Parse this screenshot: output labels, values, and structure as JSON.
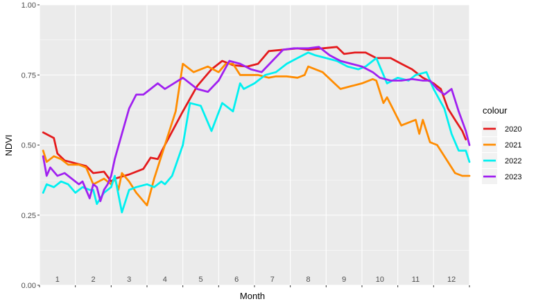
{
  "chart_data": {
    "type": "line",
    "xlabel": "Month",
    "ylabel": "NDVI",
    "ylim": [
      0,
      1
    ],
    "xlim": [
      0.5,
      12.5
    ],
    "y_ticks": [
      "0.00",
      "0.25",
      "0.50",
      "0.75",
      "1.00"
    ],
    "month_labels": [
      "1",
      "2",
      "3",
      "4",
      "5",
      "6",
      "7",
      "8",
      "9",
      "10",
      "11",
      "12"
    ],
    "grid": true,
    "legend": {
      "title": "colour",
      "placement": "right"
    },
    "series": [
      {
        "name": "2020",
        "color": "#e41a1c",
        "x": [
          0.6,
          0.9,
          1.0,
          1.2,
          1.5,
          1.8,
          2.0,
          2.3,
          2.5,
          2.6,
          3.0,
          3.4,
          3.6,
          3.8,
          4.0,
          4.5,
          4.9,
          5.3,
          5.6,
          5.9,
          6.3,
          6.6,
          6.9,
          7.3,
          7.7,
          8.0,
          8.4,
          8.8,
          9.0,
          9.3,
          9.6,
          9.9,
          10.0,
          10.3,
          10.6,
          10.9,
          11.2,
          11.5,
          11.7,
          11.9,
          12.1,
          12.3,
          12.4
        ],
        "y": [
          0.545,
          0.525,
          0.47,
          0.445,
          0.435,
          0.425,
          0.4,
          0.405,
          0.37,
          0.38,
          0.395,
          0.415,
          0.455,
          0.45,
          0.5,
          0.62,
          0.71,
          0.77,
          0.8,
          0.785,
          0.78,
          0.79,
          0.835,
          0.84,
          0.845,
          0.84,
          0.845,
          0.85,
          0.825,
          0.83,
          0.83,
          0.81,
          0.81,
          0.81,
          0.79,
          0.77,
          0.74,
          0.72,
          0.7,
          0.63,
          0.59,
          0.55,
          0.52
        ]
      },
      {
        "name": "2021",
        "color": "#ff8c00",
        "x": [
          0.6,
          0.7,
          0.9,
          1.1,
          1.3,
          1.6,
          1.8,
          2.0,
          2.3,
          2.5,
          2.6,
          2.7,
          2.8,
          3.0,
          3.2,
          3.5,
          3.7,
          4.0,
          4.3,
          4.5,
          4.8,
          5.2,
          5.5,
          5.7,
          5.9,
          6.1,
          6.3,
          6.6,
          6.9,
          7.1,
          7.4,
          7.7,
          7.9,
          8.0,
          8.4,
          8.9,
          9.2,
          9.5,
          9.8,
          9.9,
          10.1,
          10.2,
          10.4,
          10.6,
          10.8,
          11.0,
          11.1,
          11.2,
          11.4,
          11.6,
          11.9,
          12.1,
          12.3,
          12.5
        ],
        "y": [
          0.48,
          0.44,
          0.46,
          0.45,
          0.43,
          0.43,
          0.42,
          0.36,
          0.38,
          0.36,
          0.38,
          0.34,
          0.4,
          0.37,
          0.33,
          0.285,
          0.38,
          0.5,
          0.62,
          0.79,
          0.76,
          0.78,
          0.76,
          0.79,
          0.79,
          0.75,
          0.75,
          0.75,
          0.74,
          0.745,
          0.745,
          0.74,
          0.75,
          0.78,
          0.76,
          0.7,
          0.71,
          0.72,
          0.735,
          0.73,
          0.65,
          0.67,
          0.62,
          0.57,
          0.58,
          0.59,
          0.54,
          0.59,
          0.51,
          0.5,
          0.44,
          0.4,
          0.39,
          0.39
        ]
      },
      {
        "name": "2022",
        "color": "#00f0f0",
        "x": [
          0.6,
          0.7,
          0.9,
          1.1,
          1.3,
          1.5,
          1.7,
          1.9,
          2.0,
          2.1,
          2.2,
          2.3,
          2.5,
          2.6,
          2.8,
          3.0,
          3.2,
          3.5,
          3.7,
          3.9,
          4.0,
          4.2,
          4.5,
          4.7,
          5.0,
          5.3,
          5.6,
          5.9,
          6.1,
          6.2,
          6.5,
          6.8,
          7.1,
          7.4,
          7.7,
          8.0,
          8.2,
          8.5,
          8.8,
          9.1,
          9.4,
          9.6,
          9.9,
          10.2,
          10.5,
          10.8,
          11.0,
          11.3,
          11.5,
          11.8,
          12.0,
          12.2,
          12.4,
          12.5
        ],
        "y": [
          0.33,
          0.36,
          0.35,
          0.37,
          0.36,
          0.33,
          0.35,
          0.34,
          0.34,
          0.29,
          0.31,
          0.33,
          0.35,
          0.39,
          0.26,
          0.34,
          0.35,
          0.36,
          0.35,
          0.37,
          0.36,
          0.39,
          0.5,
          0.65,
          0.64,
          0.55,
          0.65,
          0.62,
          0.72,
          0.7,
          0.72,
          0.75,
          0.76,
          0.79,
          0.81,
          0.83,
          0.82,
          0.81,
          0.8,
          0.78,
          0.77,
          0.78,
          0.81,
          0.72,
          0.74,
          0.73,
          0.75,
          0.76,
          0.7,
          0.63,
          0.54,
          0.48,
          0.48,
          0.44
        ]
      },
      {
        "name": "2023",
        "color": "#a020f0",
        "x": [
          0.6,
          0.7,
          0.8,
          1.0,
          1.2,
          1.4,
          1.6,
          1.7,
          1.8,
          1.9,
          2.0,
          2.1,
          2.2,
          2.3,
          2.4,
          2.5,
          2.6,
          2.8,
          3.0,
          3.2,
          3.4,
          3.6,
          3.8,
          4.0,
          4.5,
          4.9,
          5.2,
          5.5,
          5.8,
          6.1,
          6.4,
          6.7,
          7.0,
          7.3,
          7.6,
          8.0,
          8.3,
          8.6,
          8.9,
          9.2,
          9.5,
          9.8,
          10.0,
          10.3,
          10.6,
          10.9,
          11.2,
          11.4,
          11.6,
          11.8,
          12.0,
          12.2,
          12.4,
          12.5
        ],
        "y": [
          0.46,
          0.39,
          0.42,
          0.39,
          0.4,
          0.38,
          0.36,
          0.37,
          0.34,
          0.31,
          0.36,
          0.35,
          0.3,
          0.34,
          0.36,
          0.39,
          0.45,
          0.54,
          0.63,
          0.68,
          0.68,
          0.7,
          0.72,
          0.7,
          0.74,
          0.7,
          0.69,
          0.73,
          0.8,
          0.79,
          0.77,
          0.76,
          0.8,
          0.84,
          0.845,
          0.845,
          0.85,
          0.82,
          0.8,
          0.79,
          0.78,
          0.76,
          0.74,
          0.73,
          0.73,
          0.735,
          0.73,
          0.73,
          0.7,
          0.68,
          0.7,
          0.62,
          0.55,
          0.5
        ]
      }
    ]
  }
}
